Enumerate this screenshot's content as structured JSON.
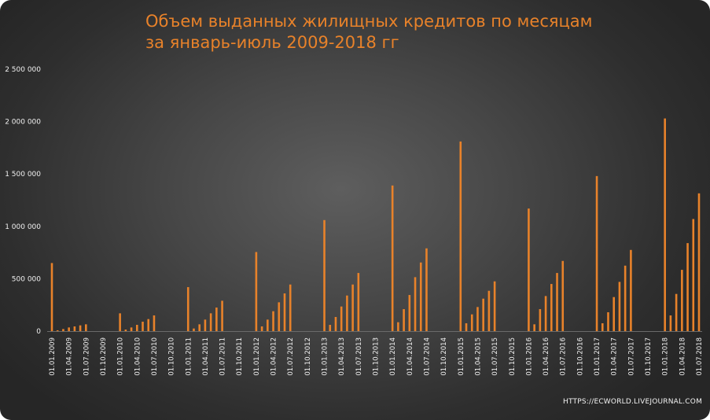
{
  "chart_data": {
    "type": "bar",
    "title_line1": "Объем выданных жилищных кредитов по месяцам",
    "title_line2": "за январь-июль 2009-2018 гг",
    "ylim": [
      0,
      2500000
    ],
    "y_ticks": [
      "0",
      "500 000",
      "1 000 000",
      "1 500 000",
      "2 000 000",
      "2 500 000"
    ],
    "y_tick_values": [
      0,
      500000,
      1000000,
      1500000,
      2000000,
      2500000
    ],
    "x_tick_labels": [
      "01.01.2009",
      "01.04.2009",
      "01.07.2009",
      "01.10.2009",
      "01.01.2010",
      "01.04.2010",
      "01.07.2010",
      "01.10.2010",
      "01.01.2011",
      "01.04.2011",
      "01.07.2011",
      "01.10.2011",
      "01.01.2012",
      "01.04.2012",
      "01.07.2012",
      "01.10.2012",
      "01.01.2013",
      "01.04.2013",
      "01.07.2013",
      "01.10.2013",
      "01.01.2014",
      "01.04.2014",
      "01.07.2014",
      "01.10.2014",
      "01.01.2015",
      "01.04.2015",
      "01.07.2015",
      "01.10.2015",
      "01.01.2016",
      "01.04.2016",
      "01.07.2016",
      "01.10.2016",
      "01.01.2017",
      "01.04.2017",
      "01.07.2017",
      "01.10.2017",
      "01.01.2018",
      "01.04.2018",
      "01.07.2018"
    ],
    "years": [
      {
        "year": 2009,
        "values": [
          650000,
          8000,
          20000,
          35000,
          45000,
          55000,
          65000
        ]
      },
      {
        "year": 2010,
        "values": [
          170000,
          15000,
          35000,
          60000,
          90000,
          115000,
          150000
        ]
      },
      {
        "year": 2011,
        "values": [
          420000,
          25000,
          65000,
          110000,
          170000,
          225000,
          290000
        ]
      },
      {
        "year": 2012,
        "values": [
          755000,
          45000,
          110000,
          190000,
          275000,
          360000,
          445000
        ]
      },
      {
        "year": 2013,
        "values": [
          1060000,
          60000,
          135000,
          235000,
          340000,
          445000,
          555000
        ]
      },
      {
        "year": 2014,
        "values": [
          1390000,
          85000,
          210000,
          345000,
          515000,
          655000,
          790000
        ]
      },
      {
        "year": 2015,
        "values": [
          1810000,
          75000,
          160000,
          230000,
          310000,
          385000,
          475000
        ]
      },
      {
        "year": 2016,
        "values": [
          1170000,
          65000,
          210000,
          335000,
          450000,
          555000,
          670000
        ]
      },
      {
        "year": 2017,
        "values": [
          1480000,
          75000,
          180000,
          325000,
          470000,
          625000,
          775000
        ]
      },
      {
        "year": 2018,
        "values": [
          2030000,
          150000,
          355000,
          585000,
          840000,
          1070000,
          1315000
        ]
      }
    ],
    "bar_color": "#e8822a",
    "grid": false
  },
  "credit": "HTTPS://ECWORLD.LIVEJOURNAL.COM"
}
